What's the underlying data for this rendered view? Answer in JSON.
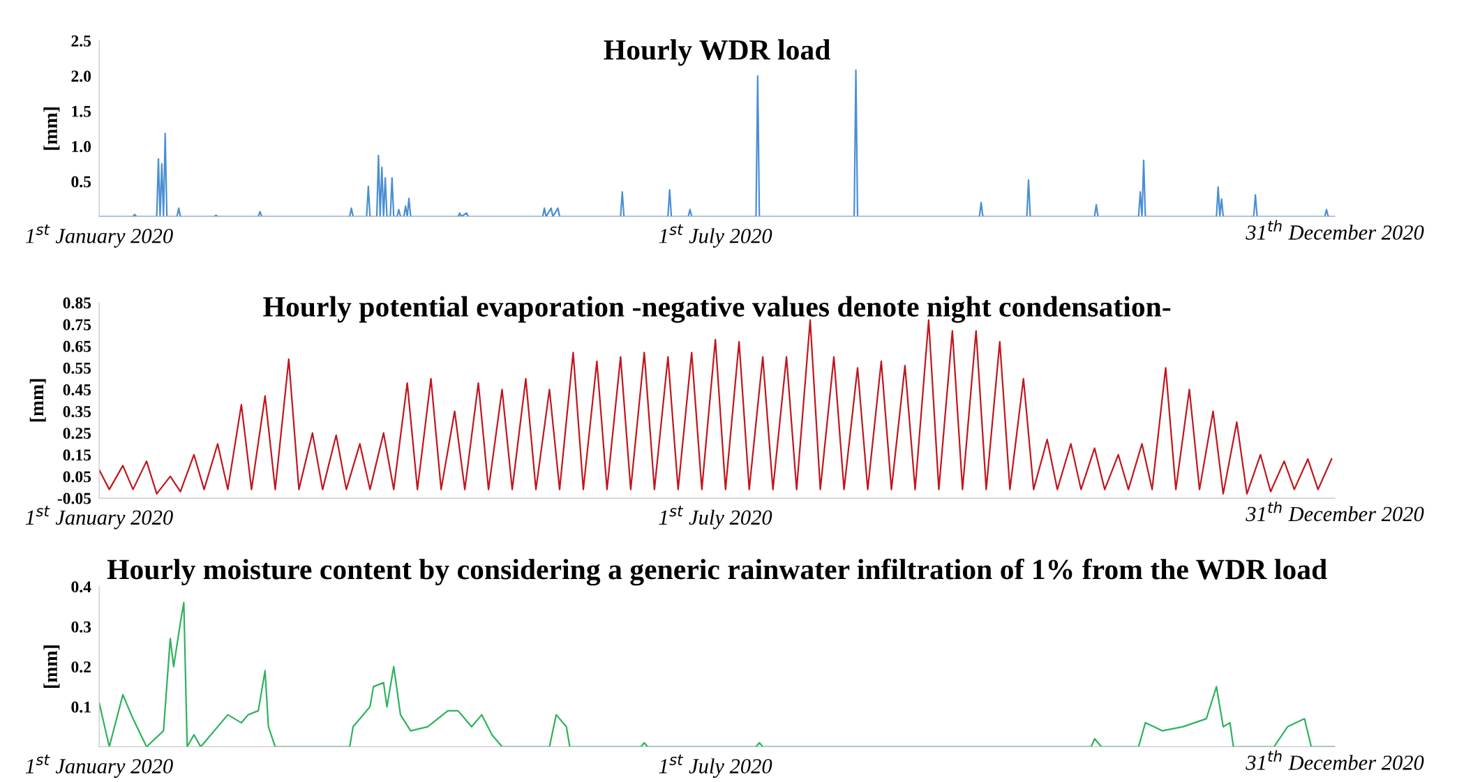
{
  "chart_data": [
    {
      "type": "line",
      "title": "Hourly WDR load",
      "ylabel": "[mm]",
      "xlim": [
        "2020-01-01",
        "2020-12-31"
      ],
      "xticks": [
        {
          "value": "2020-01-01",
          "label": "1$^{st}$ January 2020"
        },
        {
          "value": "2020-07-01",
          "label": "1$^{st}$ July 2020"
        },
        {
          "value": "2020-12-31",
          "label": "31$^{th}$ December 2020"
        }
      ],
      "ylim": [
        0,
        2.5
      ],
      "yticks": [
        0.5,
        {
          "value": 1,
          "label": "1.0"
        },
        1.5,
        {
          "value": 2,
          "label": "2.0"
        },
        2.5
      ],
      "grid": false,
      "legend": false,
      "series": [
        {
          "color": "#4a8fd4",
          "x": [
            "2020-01-01",
            "2020-01-11",
            "2020-01-11T12:00",
            "2020-01-12",
            "2020-01-18",
            "2020-01-18T12:00",
            "2020-01-19",
            "2020-01-19T12:00",
            "2020-01-20",
            "2020-01-20T12:00",
            "2020-01-21",
            "2020-01-24",
            "2020-01-24T12:00",
            "2020-01-25",
            "2020-02-04",
            "2020-02-04T12:00",
            "2020-02-05",
            "2020-02-17",
            "2020-02-17T12:00",
            "2020-02-18",
            "2020-03-15",
            "2020-03-15T12:00",
            "2020-03-16",
            "2020-03-20",
            "2020-03-20T12:00",
            "2020-03-21",
            "2020-03-23",
            "2020-03-23T12:00",
            "2020-03-24",
            "2020-03-24T12:00",
            "2020-03-25",
            "2020-03-25T12:00",
            "2020-03-26",
            "2020-03-27",
            "2020-03-27T12:00",
            "2020-03-28",
            "2020-03-29",
            "2020-03-29T12:00",
            "2020-03-30",
            "2020-03-31",
            "2020-03-31T12:00",
            "2020-04-01",
            "2020-04-01T12:00",
            "2020-04-02",
            "2020-04-16",
            "2020-04-16T12:00",
            "2020-04-17",
            "2020-04-18T12:00",
            "2020-04-19",
            "2020-05-11",
            "2020-05-11T12:00",
            "2020-05-12",
            "2020-05-13T12:00",
            "2020-05-14",
            "2020-05-15T12:00",
            "2020-05-16",
            "2020-06-03",
            "2020-06-03T12:00",
            "2020-06-04",
            "2020-06-17",
            "2020-06-17T12:00",
            "2020-06-18",
            "2020-06-23",
            "2020-06-23T12:00",
            "2020-06-24",
            "2020-07-13",
            "2020-07-13T12:00",
            "2020-07-14",
            "2020-08-11",
            "2020-08-11T12:00",
            "2020-08-12",
            "2020-09-17",
            "2020-09-17T12:00",
            "2020-09-18",
            "2020-10-01",
            "2020-10-01T12:00",
            "2020-10-02",
            "2020-10-21",
            "2020-10-21T12:00",
            "2020-10-22",
            "2020-11-03",
            "2020-11-03T12:00",
            "2020-11-04",
            "2020-11-04T12:00",
            "2020-11-05",
            "2020-11-26",
            "2020-11-26T12:00",
            "2020-11-27",
            "2020-11-27T12:00",
            "2020-11-28",
            "2020-12-07",
            "2020-12-07T12:00",
            "2020-12-08",
            "2020-12-28",
            "2020-12-28T12:00",
            "2020-12-29",
            "2020-12-31"
          ],
          "values": [
            0,
            0,
            0.03,
            0,
            0,
            0.82,
            0,
            0.75,
            0,
            1.18,
            0,
            0,
            0.12,
            0,
            0,
            0.02,
            0,
            0,
            0.07,
            0,
            0,
            0.12,
            0,
            0,
            0.43,
            0,
            0,
            0.87,
            0,
            0.7,
            0,
            0.55,
            0,
            0,
            0.55,
            0,
            0,
            0.1,
            0,
            0,
            0.15,
            0,
            0.26,
            0,
            0,
            0.05,
            0,
            0.05,
            0,
            0,
            0.12,
            0,
            0.12,
            0,
            0.12,
            0,
            0,
            0.35,
            0,
            0,
            0.38,
            0,
            0,
            0.1,
            0,
            0,
            2.0,
            0,
            0,
            2.08,
            0,
            0,
            0.2,
            0,
            0,
            0.52,
            0,
            0,
            0.17,
            0,
            0,
            0.35,
            0,
            0.8,
            0,
            0,
            0.42,
            0,
            0.25,
            0,
            0,
            0.31,
            0,
            0,
            0.1,
            0,
            0
          ]
        }
      ]
    },
    {
      "type": "line",
      "title": "Hourly potential evaporation -negative values denote night condensation-",
      "ylabel": "[mm]",
      "xlim": [
        "2020-01-01",
        "2020-12-31"
      ],
      "xticks": [
        {
          "value": "2020-01-01",
          "label": "1$^{st}$ January 2020"
        },
        {
          "value": "2020-07-01",
          "label": "1$^{st}$ July 2020"
        },
        {
          "value": "2020-12-31",
          "label": "31$^{th}$ December 2020"
        }
      ],
      "ylim": [
        -0.05,
        0.85
      ],
      "yticks": [
        {
          "value": -0.05,
          "label": "-0.05"
        },
        0.05,
        0.15,
        0.25,
        0.35,
        0.45,
        0.55,
        0.65,
        0.75,
        0.85
      ],
      "grid": false,
      "legend": false,
      "series": [
        {
          "color": "#c0171f",
          "x": [
            "2020-01-01",
            "2020-01-04",
            "2020-01-08",
            "2020-01-11",
            "2020-01-15",
            "2020-01-18",
            "2020-01-22",
            "2020-01-25",
            "2020-01-29",
            "2020-02-01",
            "2020-02-05",
            "2020-02-08",
            "2020-02-12",
            "2020-02-15",
            "2020-02-19",
            "2020-02-22",
            "2020-02-26",
            "2020-02-29",
            "2020-03-04",
            "2020-03-07",
            "2020-03-11",
            "2020-03-14",
            "2020-03-18",
            "2020-03-21",
            "2020-03-25",
            "2020-03-28",
            "2020-04-01",
            "2020-04-04",
            "2020-04-08",
            "2020-04-11",
            "2020-04-15",
            "2020-04-18",
            "2020-04-22",
            "2020-04-25",
            "2020-04-29",
            "2020-05-02",
            "2020-05-06",
            "2020-05-09",
            "2020-05-13",
            "2020-05-16",
            "2020-05-20",
            "2020-05-23",
            "2020-05-27",
            "2020-05-30",
            "2020-06-03",
            "2020-06-06",
            "2020-06-10",
            "2020-06-13",
            "2020-06-17",
            "2020-06-20",
            "2020-06-24",
            "2020-06-27",
            "2020-07-01",
            "2020-07-04",
            "2020-07-08",
            "2020-07-11",
            "2020-07-15",
            "2020-07-18",
            "2020-07-22",
            "2020-07-25",
            "2020-07-29",
            "2020-08-01",
            "2020-08-05",
            "2020-08-08",
            "2020-08-12",
            "2020-08-15",
            "2020-08-19",
            "2020-08-22",
            "2020-08-26",
            "2020-08-29",
            "2020-09-02",
            "2020-09-05",
            "2020-09-09",
            "2020-09-12",
            "2020-09-16",
            "2020-09-19",
            "2020-09-23",
            "2020-09-26",
            "2020-09-30",
            "2020-10-03",
            "2020-10-07",
            "2020-10-10",
            "2020-10-14",
            "2020-10-17",
            "2020-10-21",
            "2020-10-24",
            "2020-10-28",
            "2020-10-31",
            "2020-11-04",
            "2020-11-07",
            "2020-11-11",
            "2020-11-14",
            "2020-11-18",
            "2020-11-21",
            "2020-11-25",
            "2020-11-28",
            "2020-12-02",
            "2020-12-05",
            "2020-12-09",
            "2020-12-12",
            "2020-12-16",
            "2020-12-19",
            "2020-12-23",
            "2020-12-26",
            "2020-12-30"
          ],
          "values": [
            0.08,
            -0.01,
            0.1,
            -0.01,
            0.12,
            -0.03,
            0.05,
            -0.02,
            0.15,
            -0.01,
            0.2,
            -0.01,
            0.38,
            -0.01,
            0.42,
            -0.01,
            0.59,
            -0.01,
            0.25,
            -0.01,
            0.24,
            -0.01,
            0.2,
            -0.01,
            0.25,
            -0.01,
            0.48,
            -0.01,
            0.5,
            -0.01,
            0.35,
            -0.01,
            0.48,
            -0.01,
            0.45,
            -0.01,
            0.5,
            -0.01,
            0.45,
            -0.01,
            0.62,
            -0.01,
            0.58,
            -0.01,
            0.6,
            -0.01,
            0.62,
            -0.01,
            0.6,
            -0.01,
            0.62,
            -0.01,
            0.68,
            -0.01,
            0.67,
            -0.01,
            0.6,
            -0.01,
            0.6,
            -0.01,
            0.77,
            -0.01,
            0.6,
            -0.01,
            0.55,
            -0.01,
            0.58,
            -0.01,
            0.56,
            -0.01,
            0.77,
            -0.01,
            0.72,
            -0.01,
            0.72,
            -0.01,
            0.67,
            -0.01,
            0.5,
            -0.01,
            0.22,
            -0.01,
            0.2,
            -0.01,
            0.18,
            -0.01,
            0.15,
            -0.01,
            0.2,
            -0.01,
            0.55,
            -0.01,
            0.45,
            -0.01,
            0.35,
            -0.03,
            0.3,
            -0.03,
            0.15,
            -0.02,
            0.12,
            -0.01,
            0.13,
            -0.01,
            0.13
          ]
        }
      ]
    },
    {
      "type": "line",
      "title": "Hourly moisture content by considering a generic rainwater infiltration of 1% from the WDR load",
      "ylabel": "[mm]",
      "xlim": [
        "2020-01-01",
        "2020-12-31"
      ],
      "xticks": [
        {
          "value": "2020-01-01",
          "label": "1$^{st}$ January 2020"
        },
        {
          "value": "2020-07-01",
          "label": "1$^{st}$ July 2020"
        },
        {
          "value": "2020-12-31",
          "label": "31$^{th}$ December 2020"
        }
      ],
      "ylim": [
        0,
        0.4
      ],
      "yticks": [
        0.1,
        0.2,
        0.3,
        0.4
      ],
      "grid": false,
      "legend": false,
      "series": [
        {
          "color": "#2db35d",
          "x": [
            "2020-01-01",
            "2020-01-04",
            "2020-01-08",
            "2020-01-11",
            "2020-01-15",
            "2020-01-20",
            "2020-01-22",
            "2020-01-23",
            "2020-01-25",
            "2020-01-26",
            "2020-01-27",
            "2020-01-29",
            "2020-01-31",
            "2020-02-08",
            "2020-02-12",
            "2020-02-14",
            "2020-02-17",
            "2020-02-19",
            "2020-02-20",
            "2020-02-22",
            "2020-03-15",
            "2020-03-16",
            "2020-03-21",
            "2020-03-22",
            "2020-03-25",
            "2020-03-26",
            "2020-03-28",
            "2020-03-30",
            "2020-04-02",
            "2020-04-07",
            "2020-04-13",
            "2020-04-16",
            "2020-04-20",
            "2020-04-23",
            "2020-04-26",
            "2020-04-29",
            "2020-05-13",
            "2020-05-15",
            "2020-05-18",
            "2020-05-19",
            "2020-06-09",
            "2020-06-10",
            "2020-06-11",
            "2020-07-13",
            "2020-07-14",
            "2020-07-15",
            "2020-10-20",
            "2020-10-21",
            "2020-10-23",
            "2020-11-03",
            "2020-11-05",
            "2020-11-10",
            "2020-11-16",
            "2020-11-23",
            "2020-11-26",
            "2020-11-28",
            "2020-11-30",
            "2020-12-01",
            "2020-12-13",
            "2020-12-17",
            "2020-12-22",
            "2020-12-24",
            "2020-12-31"
          ],
          "values": [
            0.11,
            0,
            0.13,
            0.07,
            0,
            0.04,
            0.27,
            0.2,
            0.31,
            0.36,
            0,
            0.03,
            0,
            0.08,
            0.06,
            0.08,
            0.09,
            0.19,
            0.05,
            0,
            0,
            0.05,
            0.1,
            0.15,
            0.16,
            0.1,
            0.2,
            0.08,
            0.04,
            0.05,
            0.09,
            0.09,
            0.05,
            0.08,
            0.03,
            0,
            0,
            0.08,
            0.05,
            0,
            0,
            0.01,
            0,
            0,
            0.01,
            0,
            0,
            0.02,
            0,
            0,
            0.06,
            0.04,
            0.05,
            0.07,
            0.15,
            0.05,
            0.06,
            0,
            0,
            0.05,
            0.07,
            0,
            0
          ]
        }
      ]
    }
  ]
}
